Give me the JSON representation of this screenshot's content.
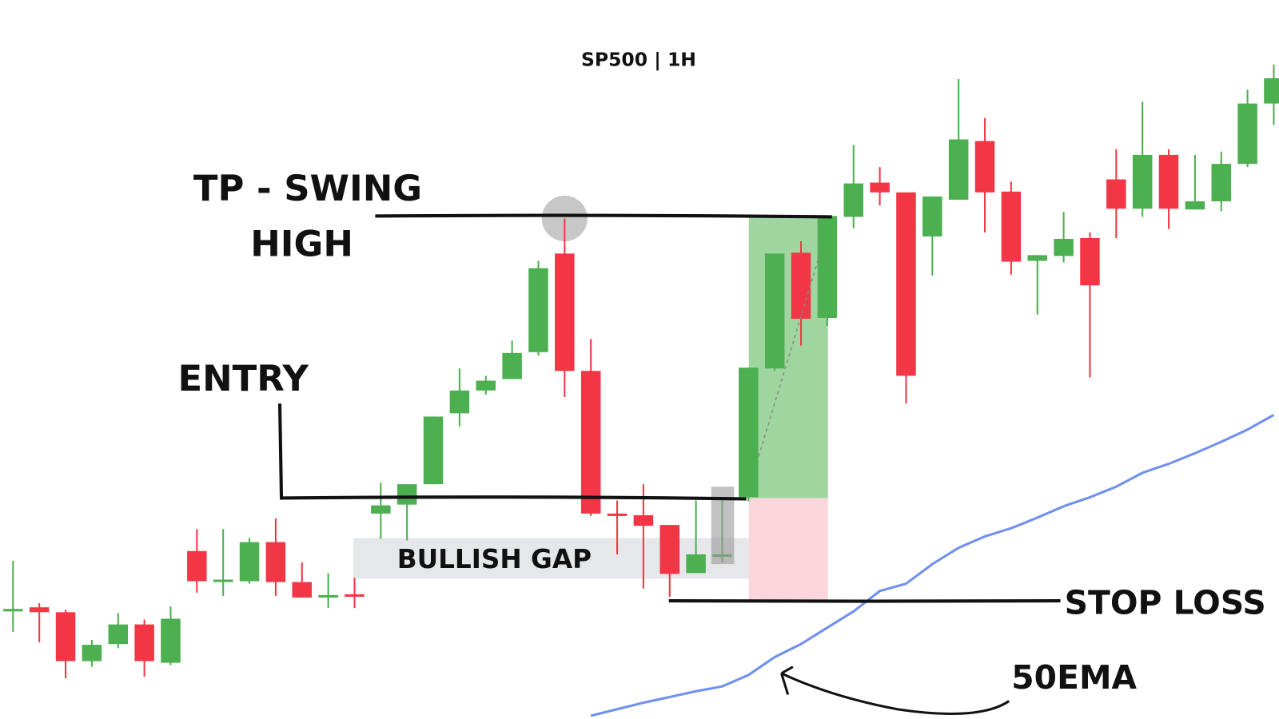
{
  "chart_data": {
    "type": "candlestick",
    "title": "SP500 | 1H",
    "open": [
      134,
      137,
      131,
      71,
      92,
      116,
      69,
      206,
      169,
      169,
      217,
      168,
      149,
      153,
      252,
      263,
      288,
      375,
      403,
      417,
      450,
      571,
      427,
      252,
      250,
      238,
      179,
      199,
      272,
      430,
      572,
      492,
      616,
      658,
      646,
      592,
      637,
      709,
      647,
      562,
      568,
      590,
      662,
      626,
      692,
      625,
      635,
      681,
      755
    ],
    "high": [
      194,
      142,
      134,
      97,
      130,
      122,
      138,
      233,
      233,
      222,
      246,
      192,
      179,
      173,
      290,
      288,
      371,
      430,
      421,
      464,
      562,
      614,
      466,
      268,
      288,
      238,
      268,
      268,
      431,
      571,
      586,
      617,
      704,
      677,
      646,
      641,
      785,
      737,
      659,
      569,
      622,
      597,
      699,
      757,
      699,
      692,
      696,
      772,
      803
    ],
    "low": [
      107,
      94,
      50,
      64,
      87,
      52,
      66,
      155,
      151,
      166,
      151,
      149,
      136,
      136,
      221,
      219,
      288,
      359,
      398,
      417,
      446,
      395,
      249,
      202,
      160,
      150,
      179,
      192,
      267,
      427,
      458,
      482,
      602,
      630,
      387,
      544,
      637,
      597,
      545,
      496,
      560,
      419,
      590,
      616,
      601,
      625,
      623,
      677,
      729
    ],
    "close": [
      135,
      131,
      71,
      91,
      116,
      71,
      123,
      169,
      171,
      217,
      168,
      149,
      152,
      151,
      262,
      288,
      371,
      403,
      415,
      449,
      553,
      427,
      252,
      250,
      237,
      178,
      202,
      202,
      431,
      571,
      491,
      617,
      657,
      646,
      421,
      641,
      711,
      646,
      561,
      569,
      589,
      532,
      626,
      692,
      626,
      635,
      681,
      755,
      786
    ],
    "up_color": "#4caf50",
    "down_color": "#f23645",
    "ema": {
      "color": "#6f8ff3",
      "values": [
        null,
        null,
        null,
        null,
        null,
        null,
        null,
        null,
        null,
        null,
        null,
        null,
        null,
        null,
        null,
        null,
        null,
        null,
        null,
        null,
        null,
        null,
        4,
        12,
        20,
        27,
        34,
        40,
        54,
        76,
        92,
        112,
        132,
        157,
        166,
        190,
        210,
        224,
        234,
        247,
        261,
        272,
        285,
        302,
        313,
        326,
        340,
        355,
        373
      ]
    },
    "levels": {
      "take_profit": 616,
      "entry": 271,
      "stop_loss": 145
    },
    "gap_zone": [
      172,
      222
    ],
    "ylim": [
      0,
      882
    ],
    "labels": {
      "take_profit": [
        "TP - SWING",
        "HIGH"
      ],
      "entry": "ENTRY",
      "gap": "BULLISH GAP",
      "stop_loss": "STOP LOSS",
      "ema": "50EMA"
    }
  }
}
